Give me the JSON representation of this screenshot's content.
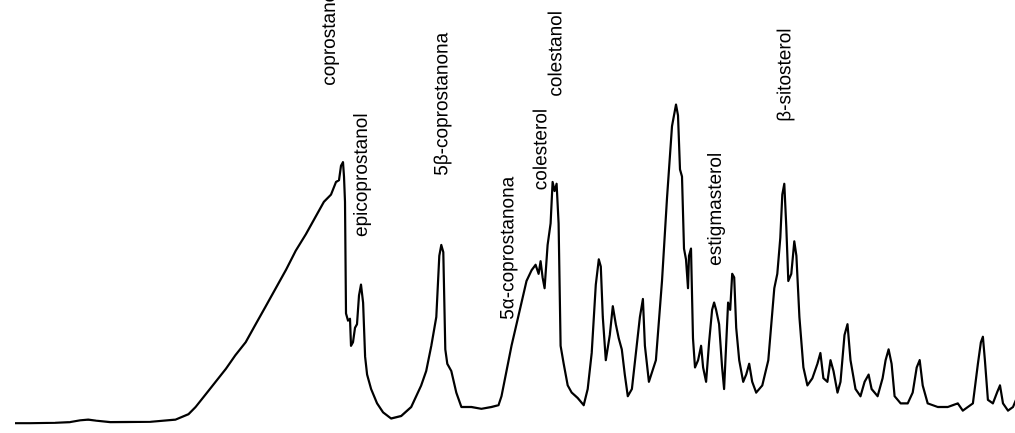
{
  "chart_data": {
    "type": "line",
    "title": "",
    "xlabel": "",
    "ylabel": "",
    "grid": false,
    "legend": "none",
    "line_color": "#000000",
    "xlim": [
      0,
      1000
    ],
    "ylim": [
      0,
      100
    ],
    "peak_labels": [
      {
        "text": "coprostanol",
        "x": 318,
        "y": 92
      },
      {
        "text": "epicoprostanol",
        "x": 350,
        "y": 50
      },
      {
        "text": "5β-coprostanona",
        "x": 430,
        "y": 67
      },
      {
        "text": "5α-coprostanona",
        "x": 496,
        "y": 27
      },
      {
        "text": "colesterol",
        "x": 529,
        "y": 63
      },
      {
        "text": "colestanol",
        "x": 544,
        "y": 89
      },
      {
        "text": "estigmasterol",
        "x": 703,
        "y": 42
      },
      {
        "text": "β-sitosterol",
        "x": 772,
        "y": 82
      }
    ],
    "series": [
      {
        "points": [
          [
            5,
            0.5
          ],
          [
            20,
            0.5
          ],
          [
            45,
            0.6
          ],
          [
            60,
            0.8
          ],
          [
            70,
            1.3
          ],
          [
            78,
            1.5
          ],
          [
            86,
            1.2
          ],
          [
            100,
            0.8
          ],
          [
            140,
            0.9
          ],
          [
            165,
            1.5
          ],
          [
            178,
            3
          ],
          [
            185,
            5
          ],
          [
            195,
            8.5
          ],
          [
            205,
            12
          ],
          [
            215,
            15.5
          ],
          [
            225,
            19.5
          ],
          [
            235,
            23
          ],
          [
            245,
            28
          ],
          [
            255,
            33
          ],
          [
            265,
            38
          ],
          [
            275,
            43
          ],
          [
            285,
            48.5
          ],
          [
            295,
            53
          ],
          [
            305,
            58
          ],
          [
            313,
            62
          ],
          [
            320,
            64
          ],
          [
            325,
            67.5
          ],
          [
            328,
            68
          ],
          [
            330,
            72
          ],
          [
            332,
            73
          ],
          [
            333,
            69
          ],
          [
            334,
            62
          ],
          [
            335,
            31
          ],
          [
            337,
            29
          ],
          [
            339,
            29.5
          ],
          [
            340,
            22
          ],
          [
            342,
            23
          ],
          [
            344,
            27
          ],
          [
            346,
            28
          ],
          [
            348,
            36
          ],
          [
            350,
            39
          ],
          [
            352,
            34
          ],
          [
            354,
            19
          ],
          [
            356,
            14
          ],
          [
            360,
            10
          ],
          [
            366,
            6
          ],
          [
            372,
            3.5
          ],
          [
            380,
            1.8
          ],
          [
            390,
            2.5
          ],
          [
            400,
            5
          ],
          [
            410,
            11
          ],
          [
            415,
            15
          ],
          [
            420,
            22
          ],
          [
            425,
            30
          ],
          [
            428,
            47
          ],
          [
            430,
            50
          ],
          [
            432,
            48
          ],
          [
            434,
            21
          ],
          [
            436,
            17
          ],
          [
            440,
            15
          ],
          [
            445,
            9
          ],
          [
            450,
            5
          ],
          [
            460,
            5
          ],
          [
            470,
            4.5
          ],
          [
            480,
            5
          ],
          [
            487,
            5.5
          ],
          [
            490,
            8
          ],
          [
            495,
            15
          ],
          [
            500,
            22
          ],
          [
            505,
            28
          ],
          [
            510,
            34
          ],
          [
            515,
            40
          ],
          [
            520,
            43
          ],
          [
            524,
            44.5
          ],
          [
            527,
            42
          ],
          [
            529,
            45.5
          ],
          [
            531,
            41
          ],
          [
            533,
            38
          ],
          [
            536,
            50
          ],
          [
            539,
            56
          ],
          [
            541,
            67.5
          ],
          [
            543,
            65
          ],
          [
            545,
            67
          ],
          [
            547,
            56
          ],
          [
            549,
            22
          ],
          [
            552,
            17
          ],
          [
            556,
            11
          ],
          [
            560,
            9
          ],
          [
            566,
            7.5
          ],
          [
            572,
            5.5
          ],
          [
            576,
            10
          ],
          [
            580,
            20
          ],
          [
            584,
            39
          ],
          [
            587,
            46
          ],
          [
            589,
            44
          ],
          [
            591,
            30
          ],
          [
            594,
            18
          ],
          [
            598,
            25
          ],
          [
            601,
            33
          ],
          [
            604,
            28
          ],
          [
            607,
            24
          ],
          [
            610,
            21
          ],
          [
            613,
            14
          ],
          [
            616,
            8
          ],
          [
            620,
            10
          ],
          [
            624,
            20
          ],
          [
            628,
            30
          ],
          [
            631,
            35
          ],
          [
            633,
            22
          ],
          [
            637,
            12
          ],
          [
            644,
            18
          ],
          [
            650,
            40
          ],
          [
            655,
            63
          ],
          [
            660,
            83
          ],
          [
            664,
            89
          ],
          [
            666,
            86
          ],
          [
            668,
            71
          ],
          [
            670,
            69
          ],
          [
            672,
            49
          ],
          [
            674,
            46
          ],
          [
            676,
            38
          ],
          [
            677,
            47
          ],
          [
            679,
            49
          ],
          [
            681,
            24
          ],
          [
            683,
            16
          ],
          [
            686,
            18
          ],
          [
            689,
            22
          ],
          [
            691,
            16
          ],
          [
            694,
            12
          ],
          [
            697,
            23
          ],
          [
            700,
            32
          ],
          [
            702,
            34
          ],
          [
            704,
            32
          ],
          [
            707,
            28
          ],
          [
            710,
            16
          ],
          [
            712,
            10
          ],
          [
            714,
            22
          ],
          [
            716,
            34
          ],
          [
            718,
            32
          ],
          [
            720,
            42
          ],
          [
            722,
            41
          ],
          [
            724,
            27
          ],
          [
            727,
            18
          ],
          [
            731,
            12
          ],
          [
            734,
            14
          ],
          [
            737,
            17
          ],
          [
            740,
            12
          ],
          [
            744,
            9
          ],
          [
            750,
            11
          ],
          [
            756,
            18
          ],
          [
            762,
            38
          ],
          [
            765,
            42
          ],
          [
            768,
            52
          ],
          [
            770,
            64
          ],
          [
            772,
            67
          ],
          [
            774,
            55
          ],
          [
            776,
            40
          ],
          [
            779,
            42
          ],
          [
            782,
            51
          ],
          [
            784,
            47
          ],
          [
            787,
            30
          ],
          [
            791,
            16
          ],
          [
            795,
            11
          ],
          [
            800,
            13
          ],
          [
            805,
            17
          ],
          [
            808,
            20
          ],
          [
            811,
            13
          ],
          [
            815,
            12
          ],
          [
            818,
            18
          ],
          [
            821,
            15
          ],
          [
            825,
            9
          ],
          [
            828,
            12
          ],
          [
            832,
            25
          ],
          [
            835,
            28
          ],
          [
            838,
            18
          ],
          [
            843,
            10
          ],
          [
            848,
            8
          ],
          [
            852,
            12
          ],
          [
            856,
            14
          ],
          [
            859,
            10
          ],
          [
            865,
            8
          ],
          [
            870,
            13
          ],
          [
            873,
            18
          ],
          [
            876,
            21
          ],
          [
            879,
            17
          ],
          [
            882,
            8
          ],
          [
            888,
            6
          ],
          [
            895,
            6
          ],
          [
            900,
            9
          ],
          [
            904,
            16
          ],
          [
            907,
            18
          ],
          [
            910,
            11
          ],
          [
            915,
            6
          ],
          [
            925,
            5
          ],
          [
            935,
            5
          ],
          [
            940,
            5.5
          ],
          [
            945,
            6
          ],
          [
            950,
            4
          ],
          [
            960,
            6
          ],
          [
            965,
            17
          ],
          [
            968,
            23
          ],
          [
            970,
            24.5
          ],
          [
            972,
            18
          ],
          [
            975,
            7
          ],
          [
            980,
            6
          ],
          [
            984,
            9
          ],
          [
            987,
            11
          ],
          [
            990,
            6
          ],
          [
            995,
            4
          ],
          [
            1000,
            5
          ],
          [
            1003,
            7
          ],
          [
            1006,
            9
          ],
          [
            1009,
            7
          ],
          [
            1012,
            5
          ]
        ]
      }
    ]
  }
}
